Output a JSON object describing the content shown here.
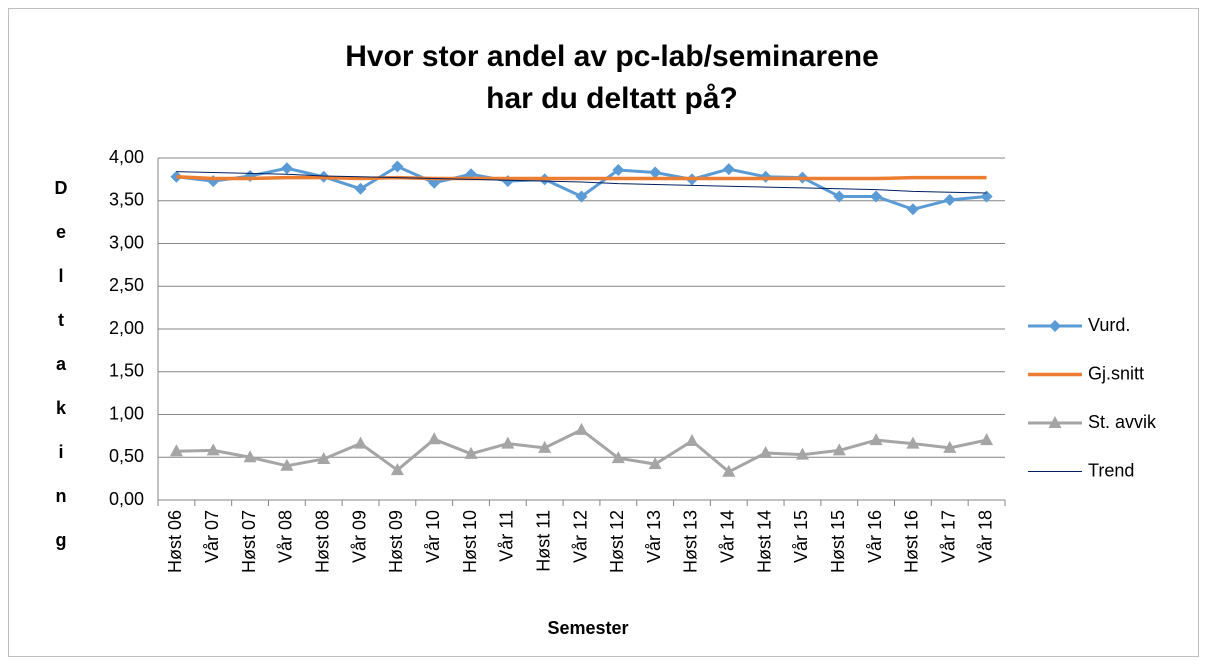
{
  "chart_data": {
    "type": "line",
    "title": [
      "Hvor stor andel av pc-lab/seminarene",
      "har du deltatt på?"
    ],
    "x_label": "Semester",
    "y_label": "Deltaking",
    "categories": [
      "Høst 06",
      "Vår 07",
      "Høst 07",
      "Vår 08",
      "Høst 08",
      "Vår 09",
      "Høst 09",
      "Vår 10",
      "Høst 10",
      "Vår 11",
      "Høst 11",
      "Vår 12",
      "Høst 12",
      "Vår 13",
      "Høst 13",
      "Vår 14",
      "Høst 14",
      "Vår 15",
      "Høst 15",
      "Vår 16",
      "Høst 16",
      "Vår 17",
      "Vår 18"
    ],
    "series": [
      {
        "name": "Vurd.",
        "color": "#5b9bd5",
        "marker": "diamond",
        "width": 3,
        "values": [
          3.78,
          3.73,
          3.79,
          3.88,
          3.78,
          3.64,
          3.9,
          3.71,
          3.81,
          3.73,
          3.75,
          3.55,
          3.86,
          3.83,
          3.75,
          3.87,
          3.78,
          3.77,
          3.55,
          3.55,
          3.4,
          3.51,
          3.55
        ]
      },
      {
        "name": "Gj.snitt",
        "color": "#ed7d31",
        "marker": "none",
        "width": 3.5,
        "values": [
          3.78,
          3.76,
          3.76,
          3.77,
          3.77,
          3.76,
          3.77,
          3.76,
          3.76,
          3.76,
          3.76,
          3.76,
          3.76,
          3.76,
          3.76,
          3.76,
          3.76,
          3.76,
          3.76,
          3.76,
          3.77,
          3.77,
          3.77
        ]
      },
      {
        "name": "St. avvik",
        "color": "#a5a5a5",
        "marker": "triangle",
        "width": 3,
        "values": [
          0.57,
          0.58,
          0.5,
          0.4,
          0.48,
          0.66,
          0.35,
          0.71,
          0.54,
          0.66,
          0.61,
          0.82,
          0.49,
          0.42,
          0.69,
          0.33,
          0.55,
          0.53,
          0.58,
          0.7,
          0.66,
          0.61,
          0.7
        ]
      },
      {
        "name": "Trend",
        "color": "#002060",
        "marker": "none",
        "width": 1,
        "values": [
          3.84,
          3.83,
          3.82,
          3.81,
          3.79,
          3.78,
          3.77,
          3.76,
          3.75,
          3.74,
          3.73,
          3.72,
          3.7,
          3.69,
          3.68,
          3.67,
          3.66,
          3.65,
          3.64,
          3.63,
          3.61,
          3.6,
          3.59
        ]
      }
    ],
    "ylim": [
      0,
      4
    ],
    "yticks": [
      {
        "value": 0,
        "label": "0,00"
      },
      {
        "value": 0.5,
        "label": "0,50"
      },
      {
        "value": 1,
        "label": "1,00"
      },
      {
        "value": 1.5,
        "label": "1,50"
      },
      {
        "value": 2,
        "label": "2,00"
      },
      {
        "value": 2.5,
        "label": "2,50"
      },
      {
        "value": 3,
        "label": "3,00"
      },
      {
        "value": 3.5,
        "label": "3,50"
      },
      {
        "value": 4,
        "label": "4,00"
      }
    ],
    "grid": true,
    "legend": "right"
  }
}
